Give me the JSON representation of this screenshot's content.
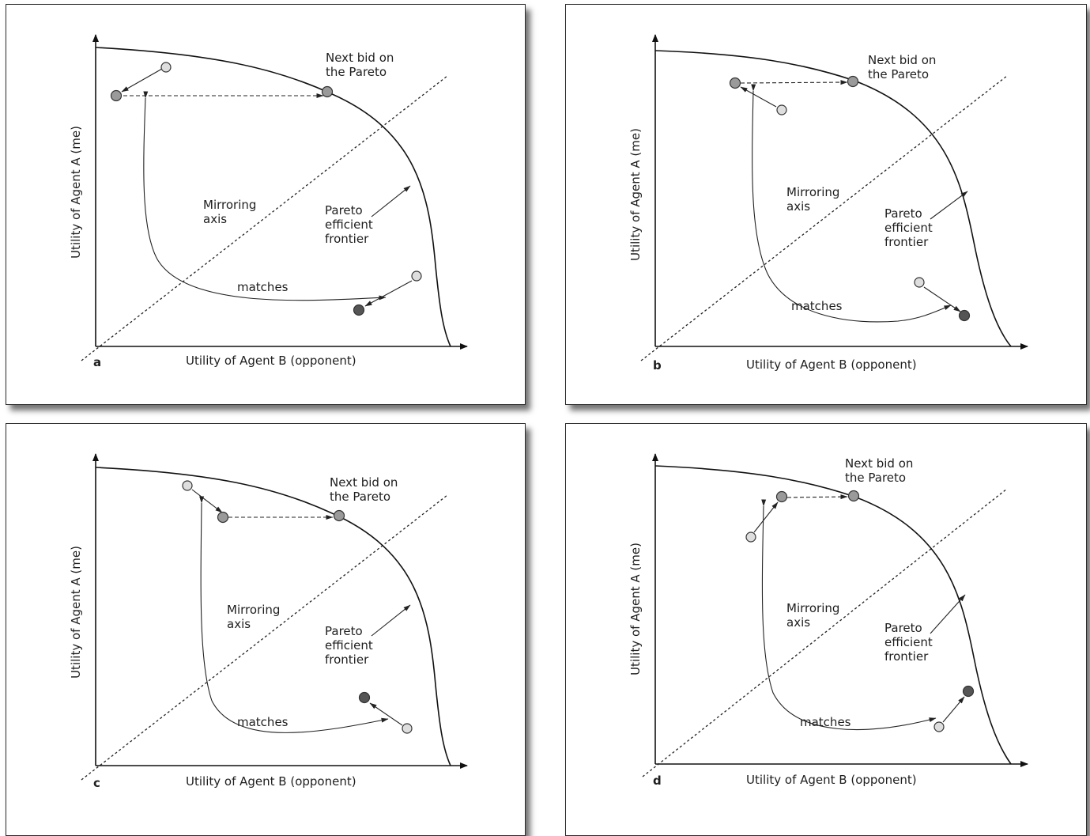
{
  "colors": {
    "light_point": "#dedede",
    "medium_point": "#9a9a9a",
    "dark_point": "#555555"
  },
  "panels": [
    {
      "letter": "a",
      "x_axis_label": "Utility of Agent B (opponent)",
      "y_axis_label": "Utility of Agent A (me)",
      "next_bid_label_1": "Next bid on",
      "next_bid_label_2": "the Pareto",
      "mirroring_label_1": "Mirroring",
      "mirroring_label_2": "axis",
      "pareto_label_1": "Pareto",
      "pareto_label_2": "efficient",
      "pareto_label_3": "frontier",
      "matches_label": "matches"
    },
    {
      "letter": "b",
      "x_axis_label": "Utility of Agent B (opponent)",
      "y_axis_label": "Utility of Agent A (me)",
      "next_bid_label_1": "Next bid on",
      "next_bid_label_2": "the Pareto",
      "mirroring_label_1": "Mirroring",
      "mirroring_label_2": "axis",
      "pareto_label_1": "Pareto",
      "pareto_label_2": "efficient",
      "pareto_label_3": "frontier",
      "matches_label": "matches"
    },
    {
      "letter": "c",
      "x_axis_label": "Utility of Agent B (opponent)",
      "y_axis_label": "Utility of Agent A (me)",
      "next_bid_label_1": "Next bid on",
      "next_bid_label_2": "the Pareto",
      "mirroring_label_1": "Mirroring",
      "mirroring_label_2": "axis",
      "pareto_label_1": "Pareto",
      "pareto_label_2": "efficient",
      "pareto_label_3": "frontier",
      "matches_label": "matches"
    },
    {
      "letter": "d",
      "x_axis_label": "Utility of Agent B (opponent)",
      "y_axis_label": "Utility of Agent A (me)",
      "next_bid_label_1": "Next bid on",
      "next_bid_label_2": "the Pareto",
      "mirroring_label_1": "Mirroring",
      "mirroring_label_2": "axis",
      "pareto_label_1": "Pareto",
      "pareto_label_2": "efficient",
      "pareto_label_3": "frontier",
      "matches_label": "matches"
    }
  ]
}
